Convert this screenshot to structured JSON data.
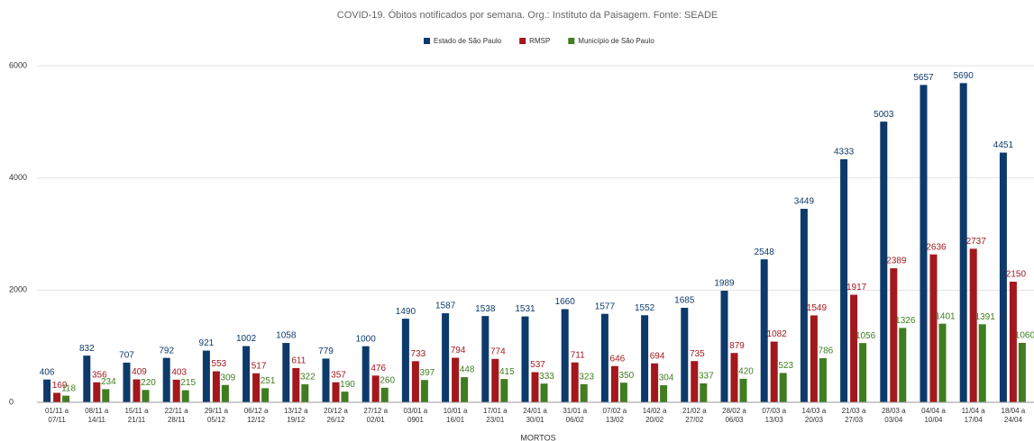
{
  "chart_data": {
    "type": "bar",
    "title": "COVID-19. Óbitos notificados por semana. Org.: Instituto da Paisagem. Fonte: SEADE",
    "x_label": "MORTOS",
    "categories": [
      [
        "01/11 a",
        "07/11"
      ],
      [
        "08/11 a",
        "14/11"
      ],
      [
        "15/11 a",
        "21/11"
      ],
      [
        "22/11 a",
        "28/11"
      ],
      [
        "29/11 a",
        "05/12"
      ],
      [
        "06/12 a",
        "12/12"
      ],
      [
        "13/12 a",
        "19/12"
      ],
      [
        "20/12 a",
        "26/12"
      ],
      [
        "27/12 a",
        "02/01"
      ],
      [
        "03/01 a",
        "0901"
      ],
      [
        "10/01 a",
        "16/01"
      ],
      [
        "17/01 a",
        "23/01"
      ],
      [
        "24/01 a",
        "30/01"
      ],
      [
        "31/01 a",
        "06/02"
      ],
      [
        "07/02 a",
        "13/02"
      ],
      [
        "14/02 a",
        "20/02"
      ],
      [
        "21/02 a",
        "27/02"
      ],
      [
        "28/02 a",
        "06/03"
      ],
      [
        "07/03 a",
        "13/03"
      ],
      [
        "14/03 a",
        "20/03"
      ],
      [
        "21/03 a",
        "27/03"
      ],
      [
        "28/03 a",
        "03/04"
      ],
      [
        "04/04 a",
        "10/04"
      ],
      [
        "11/04 a",
        "17/04"
      ],
      [
        "18/04 a",
        "24/04"
      ]
    ],
    "series": [
      {
        "name": "Estado de São Paulo",
        "color": "#0d3a6b",
        "values": [
          406,
          832,
          707,
          792,
          921,
          1002,
          1058,
          779,
          1000,
          1490,
          1587,
          1538,
          1531,
          1660,
          1577,
          1552,
          1685,
          1989,
          2548,
          3449,
          4333,
          5003,
          5657,
          5690,
          4451
        ]
      },
      {
        "name": "RMSP",
        "color": "#a3181c",
        "values": [
          169,
          356,
          409,
          403,
          553,
          517,
          611,
          357,
          476,
          733,
          794,
          774,
          537,
          711,
          646,
          694,
          735,
          879,
          1082,
          1549,
          1917,
          2389,
          2636,
          2737,
          2150
        ]
      },
      {
        "name": "Município de São Paulo",
        "color": "#3f7d20",
        "values": [
          118,
          234,
          220,
          215,
          309,
          251,
          322,
          190,
          260,
          397,
          448,
          415,
          333,
          323,
          350,
          304,
          337,
          420,
          523,
          786,
          1056,
          1326,
          1401,
          1391,
          1060
        ]
      }
    ],
    "ylim": [
      0,
      6000
    ],
    "yticks": [
      0,
      2000,
      4000,
      6000
    ],
    "grid": true,
    "legend": "top"
  }
}
